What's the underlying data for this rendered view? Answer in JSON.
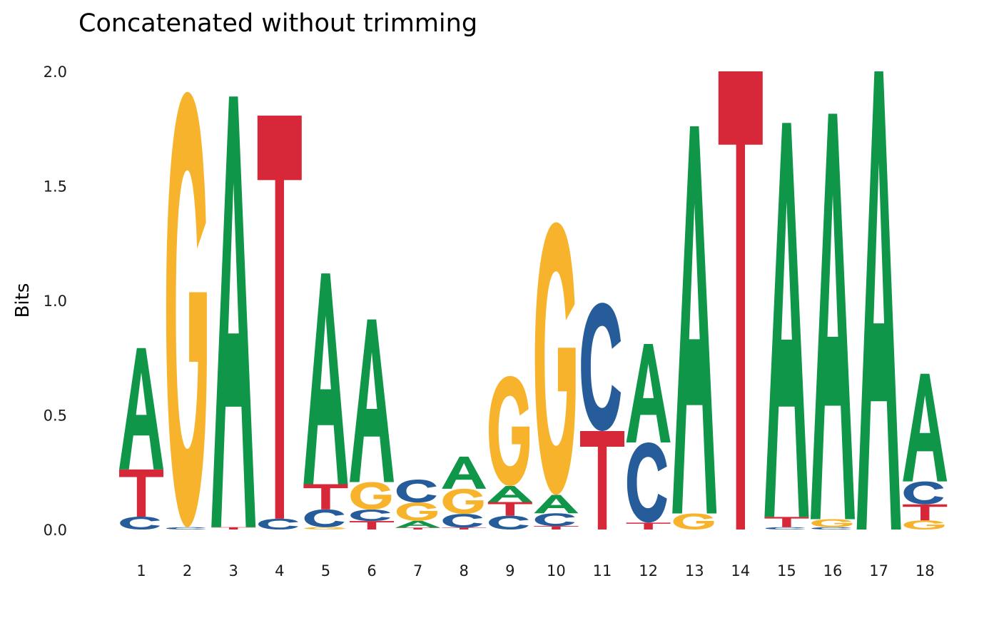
{
  "chart_data": {
    "type": "sequence-logo",
    "title": "Concatenated without trimming",
    "xlabel": "",
    "ylabel": "Bits",
    "ylim": [
      0,
      2.0
    ],
    "yticks": [
      "0.0",
      "0.5",
      "1.0",
      "1.5",
      "2.0"
    ],
    "ytick_values": [
      0,
      0.5,
      1.0,
      1.5,
      2.0
    ],
    "grid": false,
    "legend": "none",
    "colors": {
      "A": "#109648",
      "C": "#255C99",
      "G": "#F7B32B",
      "T": "#D62839"
    },
    "positions": [
      "1",
      "2",
      "3",
      "4",
      "5",
      "6",
      "7",
      "8",
      "9",
      "10",
      "11",
      "12",
      "13",
      "14",
      "15",
      "16",
      "17",
      "18"
    ],
    "stacks": [
      [
        {
          "base": "C",
          "bits": 0.056
        },
        {
          "base": "T",
          "bits": 0.206
        },
        {
          "base": "A",
          "bits": 0.53
        }
      ],
      [
        {
          "base": "C",
          "bits": 0.01
        },
        {
          "base": "G",
          "bits": 1.9
        }
      ],
      [
        {
          "base": "T",
          "bits": 0.01
        },
        {
          "base": "A",
          "bits": 1.88
        }
      ],
      [
        {
          "base": "C",
          "bits": 0.047
        },
        {
          "base": "T",
          "bits": 1.76
        }
      ],
      [
        {
          "base": "G",
          "bits": 0.01
        },
        {
          "base": "C",
          "bits": 0.078
        },
        {
          "base": "T",
          "bits": 0.11
        },
        {
          "base": "A",
          "bits": 0.92
        }
      ],
      [
        {
          "base": "T",
          "bits": 0.037
        },
        {
          "base": "C",
          "bits": 0.05
        },
        {
          "base": "G",
          "bits": 0.12
        },
        {
          "base": "A",
          "bits": 0.71
        }
      ],
      [
        {
          "base": "T",
          "bits": 0.008
        },
        {
          "base": "A",
          "bits": 0.03
        },
        {
          "base": "G",
          "bits": 0.08
        },
        {
          "base": "C",
          "bits": 0.1
        }
      ],
      [
        {
          "base": "T",
          "bits": 0.008
        },
        {
          "base": "C",
          "bits": 0.06
        },
        {
          "base": "G",
          "bits": 0.11
        },
        {
          "base": "A",
          "bits": 0.14
        }
      ],
      [
        {
          "base": "C",
          "bits": 0.06
        },
        {
          "base": "T",
          "bits": 0.06
        },
        {
          "base": "A",
          "bits": 0.07
        },
        {
          "base": "G",
          "bits": 0.48
        }
      ],
      [
        {
          "base": "T",
          "bits": 0.015
        },
        {
          "base": "C",
          "bits": 0.056
        },
        {
          "base": "A",
          "bits": 0.08
        },
        {
          "base": "G",
          "bits": 1.19
        }
      ],
      [
        {
          "base": "T",
          "bits": 0.43
        },
        {
          "base": "C",
          "bits": 0.56
        }
      ],
      [
        {
          "base": "T",
          "bits": 0.03
        },
        {
          "base": "C",
          "bits": 0.35
        },
        {
          "base": "A",
          "bits": 0.43
        }
      ],
      [
        {
          "base": "G",
          "bits": 0.07
        },
        {
          "base": "A",
          "bits": 1.69
        }
      ],
      [
        {
          "base": "T",
          "bits": 2.0
        }
      ],
      [
        {
          "base": "C",
          "bits": 0.01
        },
        {
          "base": "T",
          "bits": 0.045
        },
        {
          "base": "A",
          "bits": 1.72
        }
      ],
      [
        {
          "base": "C",
          "bits": 0.01
        },
        {
          "base": "G",
          "bits": 0.035
        },
        {
          "base": "A",
          "bits": 1.77
        }
      ],
      [
        {
          "base": "A",
          "bits": 2.0
        }
      ],
      [
        {
          "base": "G",
          "bits": 0.04
        },
        {
          "base": "T",
          "bits": 0.07
        },
        {
          "base": "C",
          "bits": 0.1
        },
        {
          "base": "A",
          "bits": 0.47
        }
      ]
    ]
  }
}
